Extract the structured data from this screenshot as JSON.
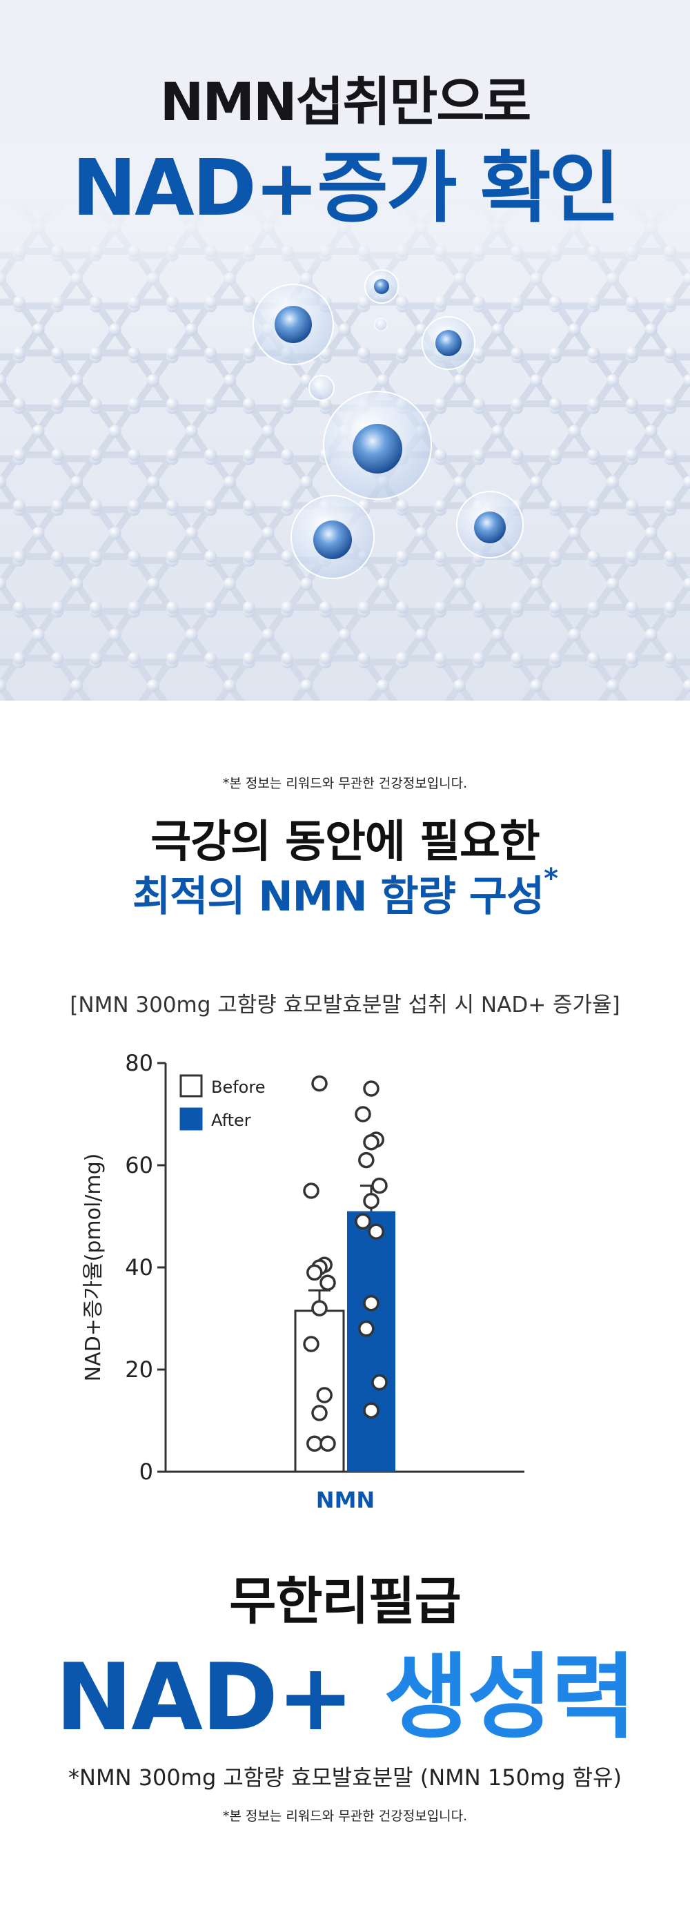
{
  "hero": {
    "title_line1": "NMN섭취만으로",
    "title_line2": "NAD+증가 확인"
  },
  "notice": "*본 정보는 리워드와 무관한 건강정보입니다.",
  "headline": {
    "line1": "극강의 동안에 필요한",
    "line2": "최적의 NMN 함량 구성",
    "line2_mark": "*"
  },
  "chart_caption": "[NMN 300mg 고함량 효모발효분말 섭취 시 NAD+ 증가율]",
  "chart_data": {
    "type": "bar",
    "categories": [
      "NMN"
    ],
    "series": [
      {
        "name": "Before",
        "values": [
          31.5
        ],
        "error": 4,
        "points": [
          76,
          55,
          40.5,
          40,
          39,
          37,
          32,
          25,
          15,
          11.5,
          5.5,
          5.5
        ]
      },
      {
        "name": "After",
        "values": [
          51
        ],
        "error": 5,
        "points": [
          75,
          70,
          65,
          64.5,
          61,
          56,
          53,
          49,
          47,
          33,
          28,
          17.5,
          12
        ]
      }
    ],
    "ylabel": "NAD+증가율(pmol/mg)",
    "ylim": [
      0,
      80
    ],
    "yticks": [
      0,
      20,
      40,
      60,
      80
    ],
    "legend_position": "top-left",
    "colors": {
      "before": "#ffffff",
      "after": "#0b57ad",
      "axis": "#333333"
    }
  },
  "closing": {
    "line1": "무한리필급",
    "line2_a": "NAD+",
    "line2_b": "생성력"
  },
  "footnote": "*NMN 300mg 고함량 효모발효분말 (NMN 150mg 함유)"
}
